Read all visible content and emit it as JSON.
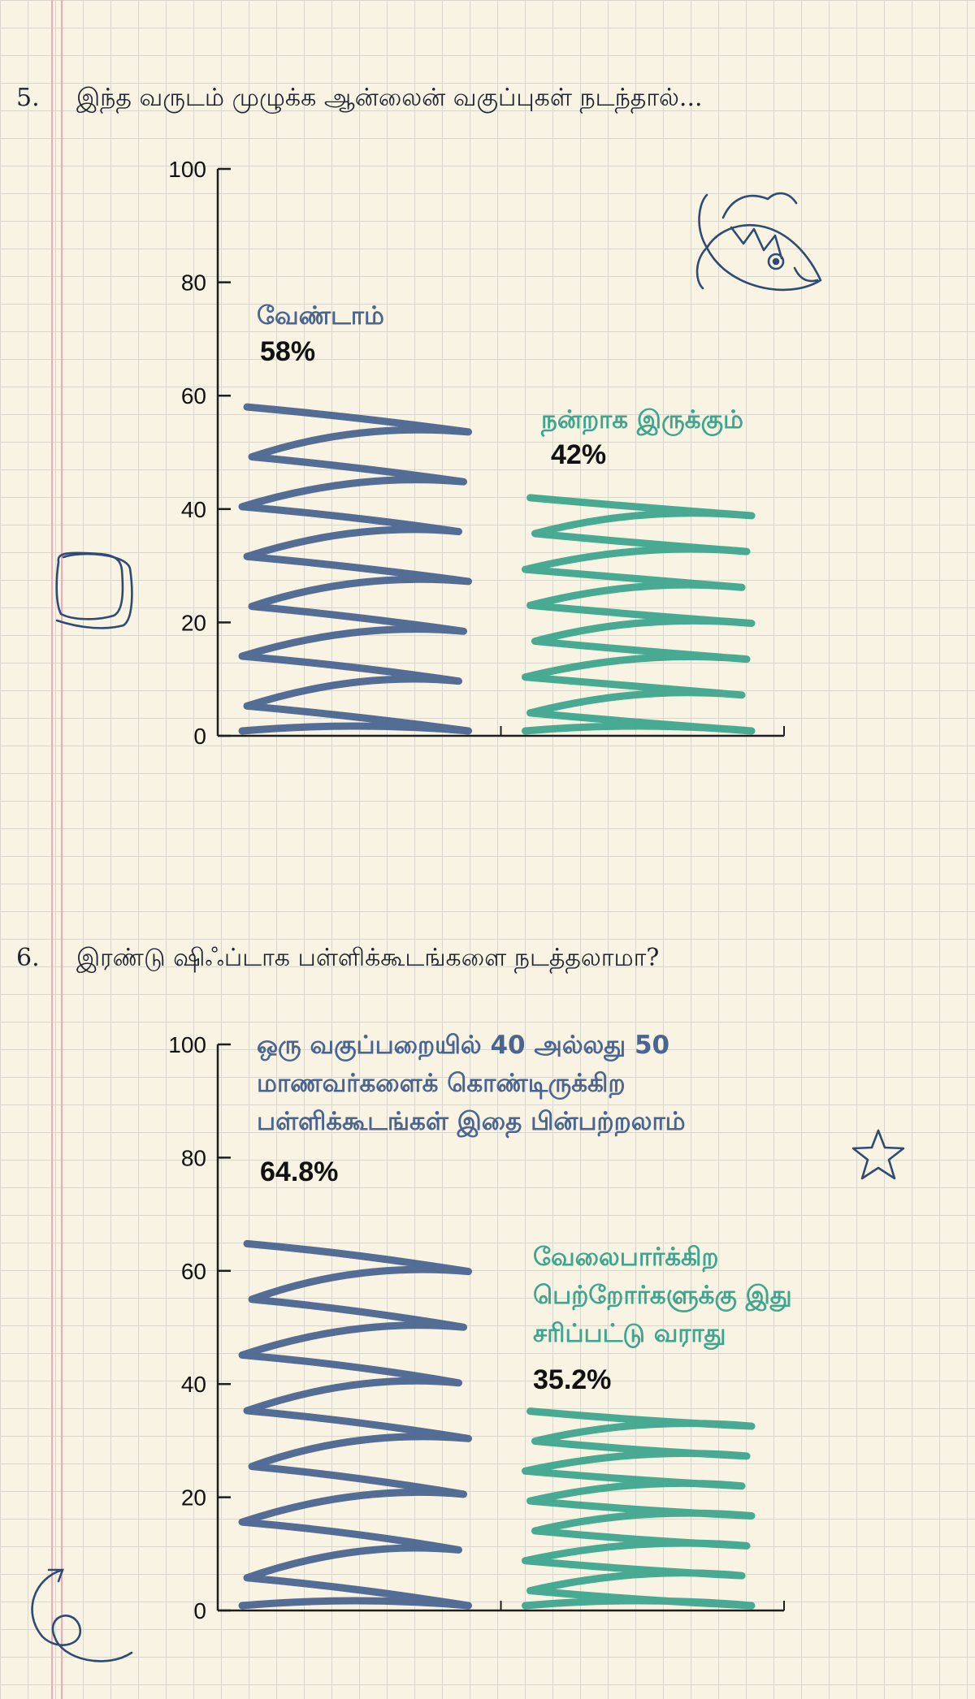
{
  "colors": {
    "blue": "#4a6590",
    "teal": "#3fa58e",
    "axis": "#1e1e1e",
    "ink": "#2f4a73"
  },
  "icons": [
    "fish-doodle-icon",
    "square-doodle-icon",
    "star-doodle-icon",
    "spiral-arrow-doodle-icon"
  ],
  "questions": [
    {
      "number": "5.",
      "text": "இந்த வருடம் முழுக்க ஆன்லைன் வகுப்புகள் நடந்தால்..."
    },
    {
      "number": "6.",
      "text": "இரண்டு ஷிஃப்டாக பள்ளிக்கூடங்களை நடத்தலாமா?"
    }
  ],
  "chart_data": [
    {
      "type": "bar",
      "ylim": [
        0,
        100
      ],
      "yticks": [
        "0",
        "20",
        "40",
        "60",
        "80",
        "100"
      ],
      "categories": [
        "வேண்டாம்",
        "நன்றாக இருக்கும்"
      ],
      "values": [
        58,
        42
      ],
      "value_labels": [
        "58%",
        "42%"
      ],
      "colors": [
        "#4a6590",
        "#3fa58e"
      ]
    },
    {
      "type": "bar",
      "ylim": [
        0,
        100
      ],
      "yticks": [
        "0",
        "20",
        "40",
        "60",
        "80",
        "100"
      ],
      "categories": [
        "ஒரு வகுப்பறையில் 40 அல்லது 50 மாணவர்களைக் கொண்டிருக்கிற பள்ளிக்கூடங்கள் இதை பின்பற்றலாம்",
        "வேலைபார்க்கிற பெற்றோர்களுக்கு இது சரிப்பட்டு வராது"
      ],
      "category_lines": [
        [
          "ஒரு வகுப்பறையில் 40 அல்லது 50",
          "மாணவர்களைக் கொண்டிருக்கிற",
          "பள்ளிக்கூடங்கள் இதை பின்பற்றலாம்"
        ],
        [
          "வேலைபார்க்கிற",
          "பெற்றோர்களுக்கு இது",
          "சரிப்பட்டு வராது"
        ]
      ],
      "values": [
        64.8,
        35.2
      ],
      "value_labels": [
        "64.8%",
        "35.2%"
      ],
      "colors": [
        "#4a6590",
        "#3fa58e"
      ]
    }
  ]
}
